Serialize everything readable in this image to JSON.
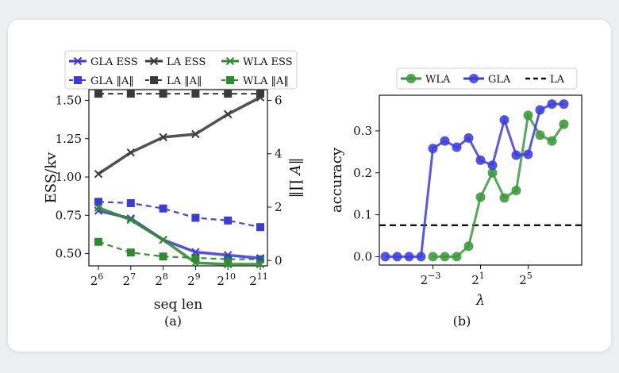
{
  "chart_data": [
    {
      "type": "line",
      "panel_label": "(a)",
      "xlabel": "seq len",
      "ylabel": "ESS/kv",
      "ylabel_right": "‖∏ A‖",
      "x": [
        6,
        7,
        8,
        9,
        10,
        11
      ],
      "xtick_base": "2",
      "xticks": [
        "6",
        "7",
        "8",
        "9",
        "10",
        "11"
      ],
      "ylim": [
        0.42,
        1.57
      ],
      "yticks": [
        "0.50",
        "0.75",
        "1.00",
        "1.25",
        "1.50"
      ],
      "ytick_values": [
        0.5,
        0.75,
        1.0,
        1.25,
        1.5
      ],
      "ylim_right": [
        -0.2,
        6.4
      ],
      "yticks_right": [
        "0",
        "2",
        "4",
        "6"
      ],
      "ytick_right_values": [
        0,
        2,
        4,
        6
      ],
      "series": [
        {
          "name": "GLA ESS",
          "axis": "left",
          "style": "solid",
          "marker": "x",
          "color": "#3b3bdb",
          "values": [
            0.78,
            0.73,
            0.59,
            0.51,
            0.49,
            0.47
          ]
        },
        {
          "name": "LA ESS",
          "axis": "left",
          "style": "solid",
          "marker": "x",
          "color": "#3a3a3a",
          "values": [
            1.02,
            1.16,
            1.26,
            1.28,
            1.41,
            1.52
          ]
        },
        {
          "name": "WLA ESS",
          "axis": "left",
          "style": "solid",
          "marker": "x",
          "color": "#2e8b2e",
          "values": [
            0.8,
            0.72,
            0.59,
            0.44,
            0.43,
            0.43
          ]
        },
        {
          "name": "GLA ‖A‖",
          "axis": "right",
          "style": "dashed",
          "marker": "s",
          "color": "#3b3bdb",
          "values": [
            2.2,
            2.15,
            1.95,
            1.6,
            1.5,
            1.25
          ]
        },
        {
          "name": "LA ‖A‖",
          "axis": "right",
          "style": "dashed",
          "marker": "s",
          "color": "#3a3a3a",
          "values": [
            6.25,
            6.25,
            6.25,
            6.25,
            6.25,
            6.25
          ]
        },
        {
          "name": "WLA ‖A‖",
          "axis": "right",
          "style": "dashed",
          "marker": "s",
          "color": "#2e8b2e",
          "values": [
            0.7,
            0.3,
            0.15,
            0.1,
            0.05,
            0.05
          ]
        }
      ]
    },
    {
      "type": "line",
      "panel_label": "(b)",
      "xlabel": "λ",
      "ylabel": "accuracy",
      "xtick_base": "2",
      "xticks": [
        "−3",
        "1",
        "5"
      ],
      "xtick_values": [
        -3,
        1,
        5
      ],
      "xlim": [
        -7.5,
        9.5
      ],
      "ylim": [
        -0.02,
        0.385
      ],
      "yticks": [
        "0.0",
        "0.1",
        "0.2",
        "0.3"
      ],
      "ytick_values": [
        0,
        0.1,
        0.2,
        0.3
      ],
      "series": [
        {
          "name": "WLA",
          "style": "solid",
          "marker": "o",
          "color": "#3a9a3a",
          "x": [
            -3,
            -2,
            -1,
            0,
            1,
            2,
            3,
            4,
            5,
            6,
            7,
            8
          ],
          "values": [
            0.0,
            0.0,
            0.0,
            0.025,
            0.142,
            0.2,
            0.14,
            0.158,
            0.337,
            0.29,
            0.276,
            0.316
          ]
        },
        {
          "name": "GLA",
          "style": "solid",
          "marker": "o",
          "color": "#3c3ce0",
          "x": [
            -7,
            -6,
            -5,
            -4,
            -3,
            -2,
            -1,
            0,
            1,
            2,
            3,
            4,
            5,
            6,
            7,
            8
          ],
          "values": [
            0.0,
            0.0,
            0.0,
            0.0,
            0.258,
            0.276,
            0.261,
            0.283,
            0.23,
            0.218,
            0.326,
            0.242,
            0.244,
            0.35,
            0.364,
            0.364
          ]
        },
        {
          "name": "LA",
          "style": "dashed",
          "marker": "none",
          "color": "#111111",
          "constant": 0.075
        }
      ]
    }
  ]
}
